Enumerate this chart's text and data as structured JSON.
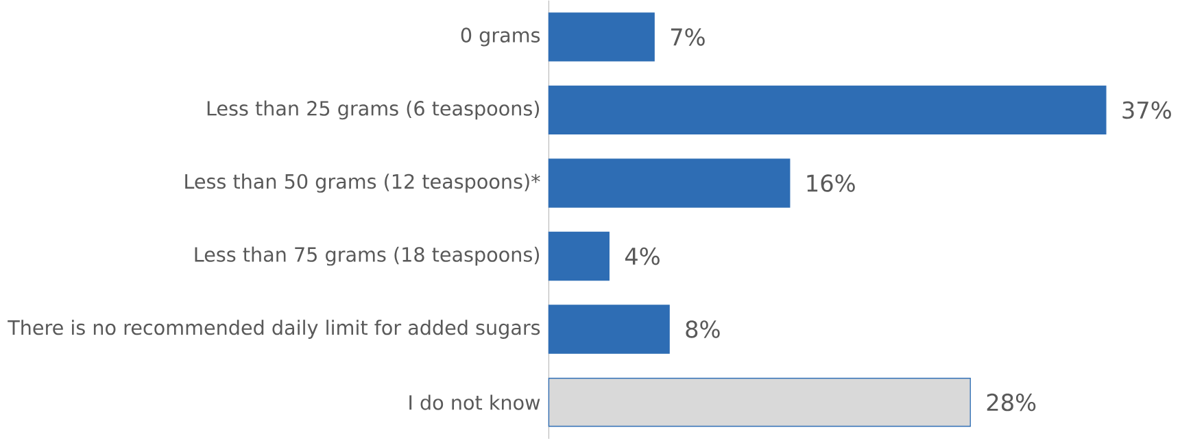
{
  "chart_data": {
    "type": "bar",
    "orientation": "horizontal",
    "categories": [
      "0 grams",
      "Less than 25 grams (6 teaspoons)",
      "Less than 50 grams (12 teaspoons)*",
      "Less than 75 grams (18 teaspoons)",
      "There is no recommended daily limit for added sugars",
      "I do not know"
    ],
    "values": [
      7,
      37,
      16,
      4,
      8,
      28
    ],
    "value_labels": [
      "7%",
      "37%",
      "16%",
      "4%",
      "8%",
      "28%"
    ],
    "colors": [
      "#2e6db4",
      "#2e6db4",
      "#2e6db4",
      "#2e6db4",
      "#2e6db4",
      "#d9d9d9"
    ]
  }
}
